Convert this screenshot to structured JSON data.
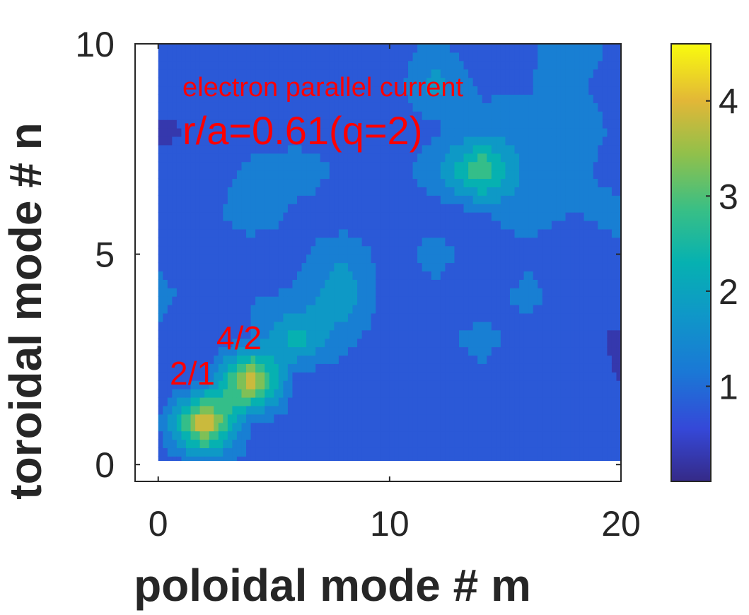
{
  "chart_data": {
    "type": "heatmap",
    "subtype": "filled-contour",
    "title": "",
    "xlabel": "poloidal mode # m",
    "ylabel": "toroidal mode # n",
    "xlim": [
      -1,
      20
    ],
    "ylim": [
      -0.4,
      10
    ],
    "x_ticks": [
      0,
      10,
      20
    ],
    "y_ticks": [
      0,
      5,
      10
    ],
    "x": [
      0,
      2,
      4,
      6,
      8,
      10,
      12,
      14,
      16,
      18,
      20
    ],
    "y": [
      0,
      1,
      2,
      3,
      4,
      5,
      6,
      7,
      8,
      9,
      10
    ],
    "z": [
      [
        0.8,
        0.9,
        0.9,
        0.8,
        0.7,
        0.6,
        0.8,
        0.6,
        0.8,
        0.8,
        0.5
      ],
      [
        0.9,
        4.5,
        0.9,
        0.8,
        0.7,
        0.6,
        0.5,
        0.7,
        0.9,
        0.6,
        0.6
      ],
      [
        0.5,
        0.9,
        4.3,
        0.6,
        0.7,
        0.5,
        0.7,
        0.8,
        0.7,
        0.7,
        0.5
      ],
      [
        0.8,
        0.5,
        1.0,
        2.4,
        1.2,
        0.7,
        0.8,
        1.3,
        0.6,
        0.7,
        0.4
      ],
      [
        1.3,
        0.6,
        1.0,
        1.1,
        2.0,
        0.7,
        0.8,
        0.6,
        1.3,
        0.6,
        0.8
      ],
      [
        0.8,
        0.6,
        0.5,
        0.9,
        1.5,
        0.7,
        1.3,
        0.6,
        0.8,
        0.5,
        0.9
      ],
      [
        0.9,
        0.7,
        1.6,
        0.8,
        0.6,
        0.8,
        0.7,
        1.0,
        1.4,
        1.0,
        1.3
      ],
      [
        0.7,
        0.5,
        1.2,
        1.6,
        0.8,
        0.6,
        1.5,
        3.2,
        1.2,
        1.2,
        0.7
      ],
      [
        0.4,
        0.6,
        0.6,
        0.5,
        0.7,
        0.6,
        0.9,
        1.3,
        1.1,
        1.5,
        0.8
      ],
      [
        0.8,
        0.7,
        1.0,
        0.8,
        0.6,
        0.7,
        1.8,
        0.9,
        1.0,
        1.2,
        0.6
      ],
      [
        0.6,
        0.8,
        0.9,
        0.7,
        0.6,
        0.7,
        1.2,
        0.5,
        0.9,
        1.6,
        0.7
      ]
    ],
    "colorbar": {
      "range": [
        0,
        4.6
      ],
      "ticks": [
        1,
        2,
        3,
        4
      ],
      "colormap": "parula"
    },
    "annotations": [
      {
        "text": "electron parallel current"
      },
      {
        "text": "r/a=0.61(q=2)"
      },
      {
        "text": "2/1"
      },
      {
        "text": "4/2"
      }
    ],
    "grid": false,
    "colors": {
      "annotation": "#ff0000",
      "axes": "#262626"
    }
  }
}
